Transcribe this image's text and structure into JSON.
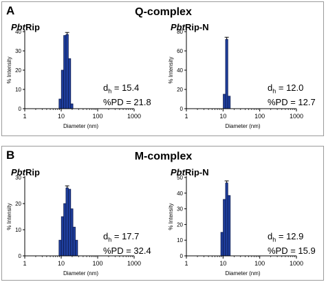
{
  "panels": [
    {
      "label": "A",
      "title": "Q-complex",
      "charts": [
        {
          "name_em": "Pbt",
          "name_rest": "Rip",
          "dh_prefix": "d",
          "dh_sub": "h",
          "dh_value": " = 15.4",
          "pd_text": "%PD = 21.8"
        },
        {
          "name_em": "Pbt",
          "name_rest": "Rip-N",
          "dh_prefix": "d",
          "dh_sub": "h",
          "dh_value": " = 12.0",
          "pd_text": "%PD = 12.7"
        }
      ]
    },
    {
      "label": "B",
      "title": "M-complex",
      "charts": [
        {
          "name_em": "Pbt",
          "name_rest": "Rip",
          "dh_prefix": "d",
          "dh_sub": "h",
          "dh_value": " = 17.7",
          "pd_text": "%PD = 32.4"
        },
        {
          "name_em": "Pbt",
          "name_rest": "Rip-N",
          "dh_prefix": "d",
          "dh_sub": "h",
          "dh_value": " = 12.9",
          "pd_text": "%PD = 15.9"
        }
      ]
    }
  ],
  "chart_data": [
    {
      "type": "bar",
      "panel": "A",
      "title": "PbtRip",
      "xlabel": "Diameter (nm)",
      "ylabel": "% Intensity",
      "xscale": "log",
      "xlim": [
        1,
        1000
      ],
      "ylim": [
        0,
        40
      ],
      "xticks": [
        "1",
        "10",
        "100",
        "1000"
      ],
      "yticks": [
        "0",
        "10",
        "20",
        "30",
        "40"
      ],
      "bins": [
        [
          8.7,
          10.1
        ],
        [
          10.1,
          11.7
        ],
        [
          11.7,
          13.5
        ],
        [
          13.5,
          15.7
        ],
        [
          15.7,
          18.2
        ],
        [
          18.2,
          21.0
        ]
      ],
      "values": [
        5,
        20,
        38,
        38.5,
        26,
        2.5
      ],
      "error_bar_on_max": true
    },
    {
      "type": "bar",
      "panel": "A",
      "title": "PbtRip-N",
      "xlabel": "Diameter (nm)",
      "ylabel": "% Intensity",
      "xscale": "log",
      "xlim": [
        1,
        1000
      ],
      "ylim": [
        0,
        80
      ],
      "xticks": [
        "1",
        "10",
        "100",
        "1000"
      ],
      "yticks": [
        "0",
        "20",
        "40",
        "60",
        "80"
      ],
      "bins": [
        [
          10.1,
          11.7
        ],
        [
          11.7,
          13.5
        ],
        [
          13.5,
          15.7
        ]
      ],
      "values": [
        15,
        72,
        13
      ],
      "error_bar_on_max": true
    },
    {
      "type": "bar",
      "panel": "B",
      "title": "PbtRip",
      "xlabel": "Diameter (nm)",
      "ylabel": "% Intensity",
      "xscale": "log",
      "xlim": [
        1,
        1000
      ],
      "ylim": [
        0,
        30
      ],
      "xticks": [
        "1",
        "10",
        "100",
        "1000"
      ],
      "yticks": [
        "0",
        "10",
        "20",
        "30"
      ],
      "bins": [
        [
          8.7,
          10.1
        ],
        [
          10.1,
          11.7
        ],
        [
          11.7,
          13.5
        ],
        [
          13.5,
          15.7
        ],
        [
          15.7,
          18.2
        ],
        [
          18.2,
          21.0
        ],
        [
          21.0,
          24.4
        ],
        [
          24.4,
          28.2
        ],
        [
          28.2,
          32.7
        ]
      ],
      "values": [
        6,
        15,
        20,
        26,
        25.5,
        18,
        11,
        6,
        0
      ],
      "error_bar_on_max": true
    },
    {
      "type": "bar",
      "panel": "B",
      "title": "PbtRip-N",
      "xlabel": "Diameter (nm)",
      "ylabel": "% Intensity",
      "xscale": "log",
      "xlim": [
        1,
        1000
      ],
      "ylim": [
        0,
        50
      ],
      "xticks": [
        "1",
        "10",
        "100",
        "1000"
      ],
      "yticks": [
        "0",
        "10",
        "20",
        "30",
        "40",
        "50"
      ],
      "bins": [
        [
          8.7,
          10.1
        ],
        [
          10.1,
          11.7
        ],
        [
          11.7,
          13.5
        ],
        [
          13.5,
          15.7
        ]
      ],
      "values": [
        15,
        36,
        46.5,
        38.5
      ],
      "error_bar_on_max": true
    }
  ],
  "colors": {
    "bar_fill": "#1f3f9e",
    "bar_stroke": "#0d1a4d",
    "axis": "#000000",
    "panel_border": "#9a9a9a"
  }
}
